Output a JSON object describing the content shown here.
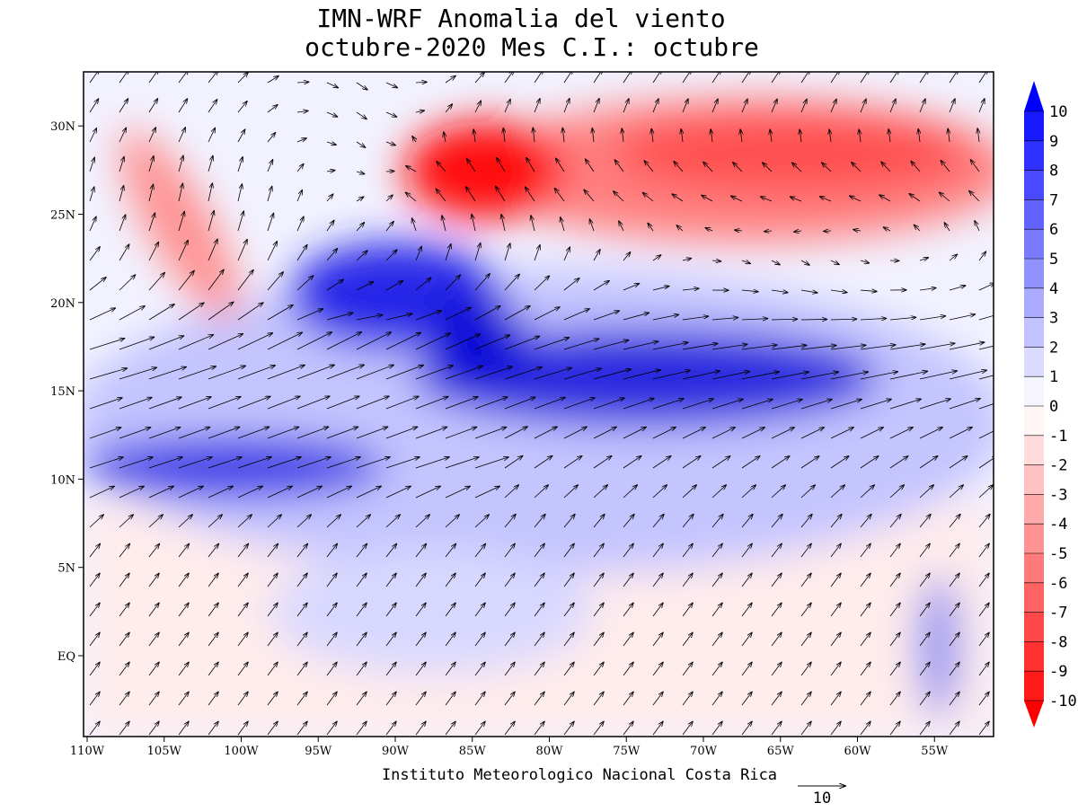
{
  "title": [
    "IMN-WRF Anomalia del viento",
    "octubre-2020 Mes C.I.: octubre"
  ],
  "map": {
    "lon_ticks": [
      {
        "value": -110,
        "label": "110W"
      },
      {
        "value": -105,
        "label": "105W"
      },
      {
        "value": -100,
        "label": "100W"
      },
      {
        "value": -95,
        "label": "95W"
      },
      {
        "value": -90,
        "label": "90W"
      },
      {
        "value": -85,
        "label": "85W"
      },
      {
        "value": -80,
        "label": "80W"
      },
      {
        "value": -75,
        "label": "75W"
      },
      {
        "value": -70,
        "label": "70W"
      },
      {
        "value": -65,
        "label": "65W"
      },
      {
        "value": -60,
        "label": "60W"
      },
      {
        "value": -55,
        "label": "55W"
      }
    ],
    "lat_ticks": [
      {
        "value": 30,
        "label": "30N"
      },
      {
        "value": 25,
        "label": "25N"
      },
      {
        "value": 20,
        "label": "20N"
      },
      {
        "value": 15,
        "label": "15N"
      },
      {
        "value": 10,
        "label": "10N"
      },
      {
        "value": 5,
        "label": "5N"
      },
      {
        "value": 0,
        "label": "EQ"
      }
    ]
  },
  "colorbar": {
    "levels": [
      10,
      9,
      8,
      7,
      6,
      5,
      4,
      3,
      2,
      1,
      0,
      -1,
      -2,
      -3,
      -4,
      -5,
      -6,
      -7,
      -8,
      -9,
      -10
    ]
  },
  "footer": "Instituto Meteorologico Nacional Costa Rica",
  "vector_reference": 10
}
